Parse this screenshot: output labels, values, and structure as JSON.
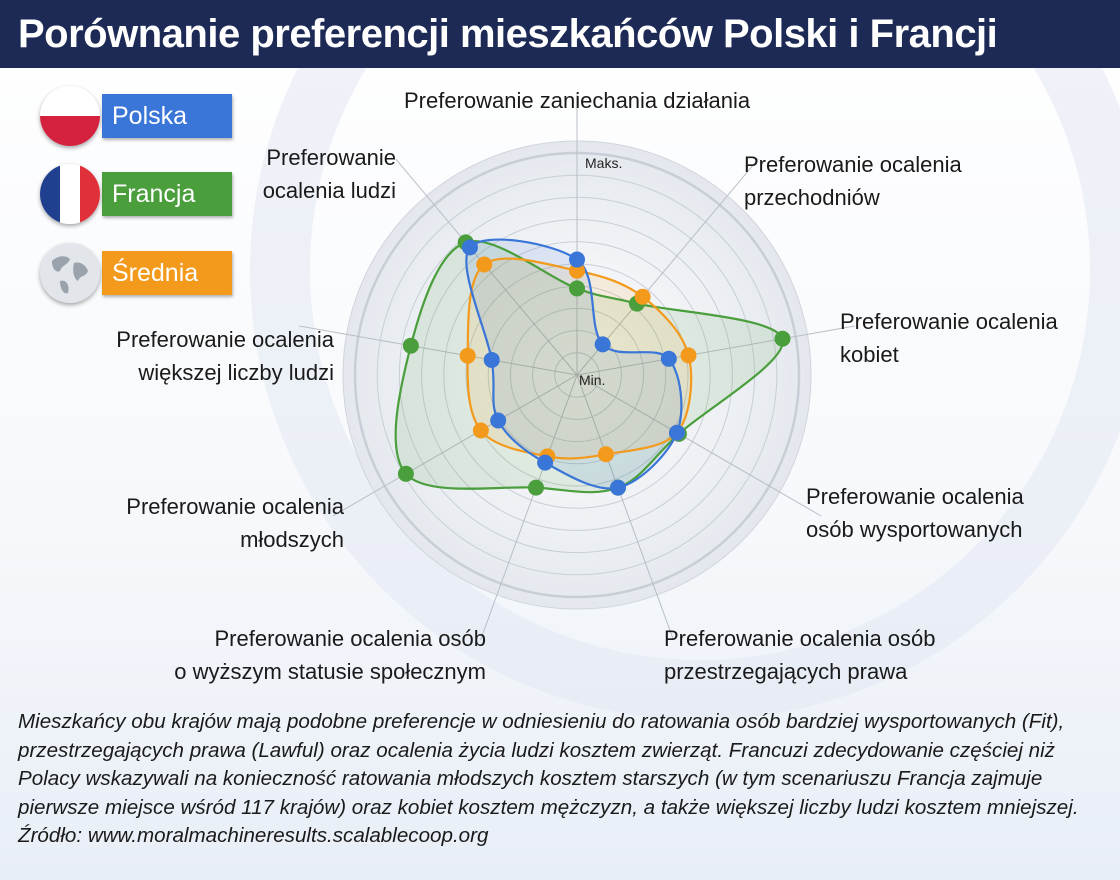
{
  "title": "Porównanie preferencji mieszkańców Polski i Francji",
  "legend": {
    "polska": {
      "label": "Polska",
      "color": "#3a76d8",
      "icon": "poland-flag-icon"
    },
    "francja": {
      "label": "Francja",
      "color": "#4a9e3c",
      "icon": "france-flag-icon"
    },
    "srednia": {
      "label": "Średnia",
      "color": "#f39a1c",
      "icon": "globe-icon"
    }
  },
  "chart_data": {
    "type": "radar",
    "scale": {
      "max_label": "Maks.",
      "min_label": "Min.",
      "min": 0,
      "max": 1
    },
    "grid": true,
    "axes": [
      {
        "lines": [
          "Preferowanie zaniechania działania"
        ]
      },
      {
        "lines": [
          "Preferowanie ocalenia",
          "przechodniów"
        ]
      },
      {
        "lines": [
          "Preferowanie ocalenia",
          "kobiet"
        ]
      },
      {
        "lines": [
          "Preferowanie ocalenia",
          "osób wysportowanych"
        ]
      },
      {
        "lines": [
          "Preferowanie ocalenia osób",
          "przestrzegających prawa"
        ]
      },
      {
        "lines": [
          "Preferowanie ocalenia osób",
          "o wyższym statusie społecznym"
        ]
      },
      {
        "lines": [
          "Preferowanie ocalenia",
          "młodszych"
        ]
      },
      {
        "lines": [
          "Preferowanie ocalenia",
          "większej liczby ludzi"
        ]
      },
      {
        "lines": [
          "Preferowanie",
          "ocalenia ludzi"
        ]
      }
    ],
    "series": [
      {
        "name": "Francja",
        "color": "#4a9e3c",
        "values": [
          0.39,
          0.42,
          0.94,
          0.53,
          0.54,
          0.54,
          0.89,
          0.76,
          0.78
        ]
      },
      {
        "name": "Średnia",
        "color": "#f39a1c",
        "values": [
          0.47,
          0.46,
          0.51,
          0.52,
          0.38,
          0.39,
          0.5,
          0.5,
          0.65
        ]
      },
      {
        "name": "Polska",
        "color": "#3a76d8",
        "values": [
          0.52,
          0.18,
          0.42,
          0.52,
          0.54,
          0.42,
          0.41,
          0.39,
          0.75
        ]
      }
    ]
  },
  "caption": [
    "Mieszkańcy obu krajów mają podobne preferencje w odniesieniu do ratowania osób bardziej wysportowanych (Fit),",
    "przestrzegających prawa (Lawful) oraz ocalenia życia ludzi kosztem zwierząt. Francuzi zdecydowanie częściej niż",
    "Polacy wskazywali na konieczność ratowania młodszych kosztem starszych (w tym scenariuszu Francja zajmuje",
    "pierwsze miejsce wśród 117 krajów) oraz kobiet kosztem mężczyzn, a także większej liczby ludzi kosztem mniejszej.",
    "Źródło: www.moralmachineresults.scalablecoop.org"
  ]
}
